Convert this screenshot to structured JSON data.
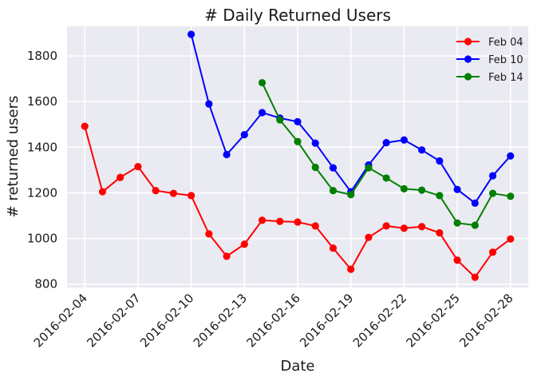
{
  "chart_data": {
    "type": "line",
    "title": "# Daily Returned Users",
    "xlabel": "Date",
    "ylabel": "# returned users",
    "x_ticks": [
      "2016-02-04",
      "2016-02-07",
      "2016-02-10",
      "2016-02-13",
      "2016-02-16",
      "2016-02-19",
      "2016-02-22",
      "2016-02-25",
      "2016-02-28"
    ],
    "y_ticks": [
      800,
      1000,
      1200,
      1400,
      1600,
      1800
    ],
    "xlim": [
      "2016-02-03",
      "2016-02-29"
    ],
    "ylim": [
      785,
      1930
    ],
    "grid": true,
    "legend_position": "top-right",
    "background": "#EAEAF2",
    "series": [
      {
        "name": "Feb 04",
        "color": "#ff0000",
        "x": [
          "2016-02-04",
          "2016-02-05",
          "2016-02-06",
          "2016-02-07",
          "2016-02-08",
          "2016-02-09",
          "2016-02-10",
          "2016-02-11",
          "2016-02-12",
          "2016-02-13",
          "2016-02-14",
          "2016-02-15",
          "2016-02-16",
          "2016-02-17",
          "2016-02-18",
          "2016-02-19",
          "2016-02-20",
          "2016-02-21",
          "2016-02-22",
          "2016-02-23",
          "2016-02-24",
          "2016-02-25",
          "2016-02-26",
          "2016-02-27",
          "2016-02-28"
        ],
        "values": [
          1492,
          1205,
          1268,
          1315,
          1210,
          1198,
          1188,
          1020,
          922,
          975,
          1080,
          1075,
          1072,
          1055,
          958,
          865,
          1005,
          1055,
          1045,
          1052,
          1025,
          905,
          830,
          940,
          998
        ]
      },
      {
        "name": "Feb 10",
        "color": "#0000ff",
        "x": [
          "2016-02-10",
          "2016-02-11",
          "2016-02-12",
          "2016-02-13",
          "2016-02-14",
          "2016-02-15",
          "2016-02-16",
          "2016-02-17",
          "2016-02-18",
          "2016-02-19",
          "2016-02-20",
          "2016-02-21",
          "2016-02-22",
          "2016-02-23",
          "2016-02-24",
          "2016-02-25",
          "2016-02-26",
          "2016-02-27",
          "2016-02-28"
        ],
        "values": [
          1895,
          1590,
          1368,
          1455,
          1552,
          1528,
          1512,
          1418,
          1310,
          1205,
          1322,
          1420,
          1432,
          1388,
          1340,
          1215,
          1155,
          1275,
          1362
        ]
      },
      {
        "name": "Feb 14",
        "color": "#008000",
        "x": [
          "2016-02-14",
          "2016-02-15",
          "2016-02-16",
          "2016-02-17",
          "2016-02-18",
          "2016-02-19",
          "2016-02-20",
          "2016-02-21",
          "2016-02-22",
          "2016-02-23",
          "2016-02-24",
          "2016-02-25",
          "2016-02-26",
          "2016-02-27",
          "2016-02-28"
        ],
        "values": [
          1683,
          1520,
          1425,
          1312,
          1210,
          1192,
          1310,
          1265,
          1218,
          1212,
          1188,
          1068,
          1058,
          1198,
          1185
        ]
      }
    ]
  }
}
